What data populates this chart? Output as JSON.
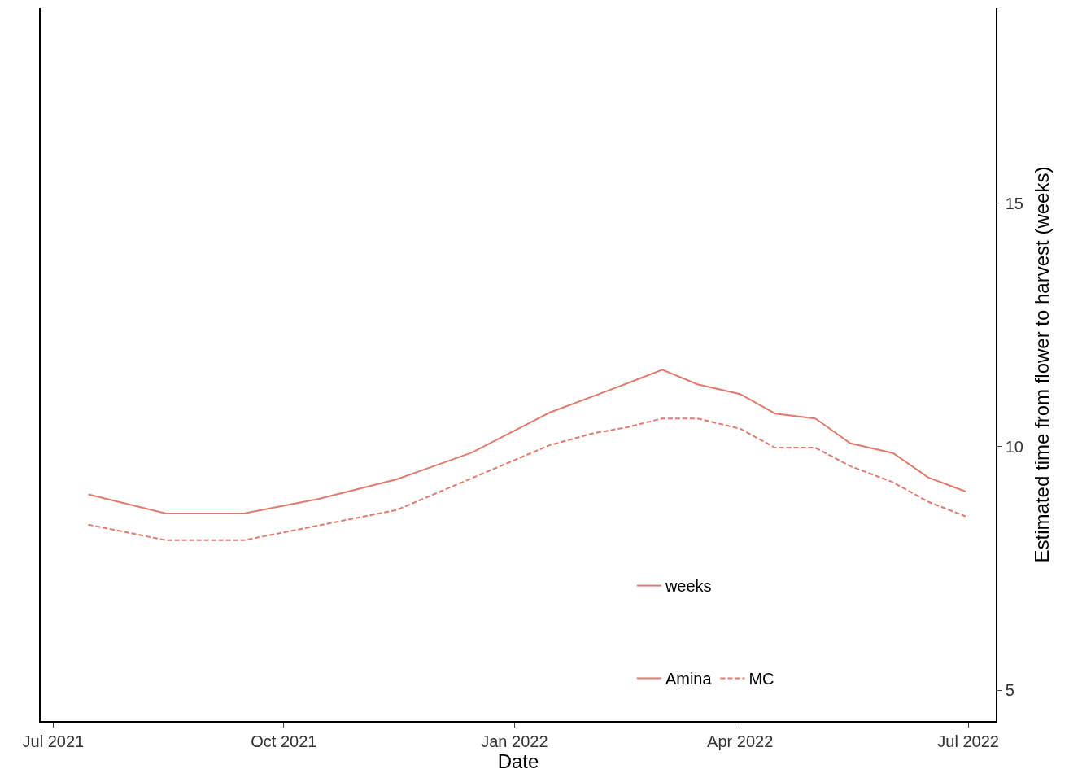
{
  "chart_data": {
    "type": "line",
    "xlabel": "Date",
    "ylabel": "Estimated time from flower to harvest (weeks)",
    "legend_title": "weeks",
    "legend": "bottom right",
    "xlim": [
      "2021-06-26",
      "2022-07-12"
    ],
    "xticks": [
      {
        "value": "2021-07-01",
        "label": "Jul 2021"
      },
      {
        "value": "2021-10-01",
        "label": "Oct 2021"
      },
      {
        "value": "2022-01-01",
        "label": "Jan 2022"
      },
      {
        "value": "2022-04-01",
        "label": "Apr 2022"
      },
      {
        "value": "2022-07-01",
        "label": "Jul 2022"
      }
    ],
    "ylim": [
      4.37,
      19
    ],
    "yticks": [
      5,
      10,
      15
    ],
    "series": [
      {
        "name": "Amina",
        "color": "#e07b6f",
        "line_style": "solid",
        "x": [
          "2021-07-15",
          "2021-08-15",
          "2021-09-15",
          "2021-10-15",
          "2021-11-15",
          "2021-12-15",
          "2022-01-15",
          "2022-02-15",
          "2022-03-01",
          "2022-03-15",
          "2022-04-01",
          "2022-04-15",
          "2022-05-01",
          "2022-05-15",
          "2022-06-01",
          "2022-06-15",
          "2022-06-30"
        ],
        "values": [
          9.02,
          8.63,
          8.63,
          8.93,
          9.33,
          9.88,
          10.7,
          11.3,
          11.58,
          11.28,
          11.08,
          10.68,
          10.58,
          10.07,
          9.87,
          9.37,
          9.08
        ]
      },
      {
        "name": "MC",
        "color": "#e07b6f",
        "line_style": "dashed",
        "x": [
          "2021-07-15",
          "2021-08-15",
          "2021-09-15",
          "2021-11-15",
          "2022-01-15",
          "2022-02-01",
          "2022-02-15",
          "2022-03-01",
          "2022-03-15",
          "2022-04-01",
          "2022-04-15",
          "2022-05-01",
          "2022-05-15",
          "2022-06-01",
          "2022-06-15",
          "2022-06-30"
        ],
        "values": [
          8.4,
          8.08,
          8.08,
          8.7,
          10.03,
          10.27,
          10.4,
          10.58,
          10.58,
          10.37,
          9.98,
          9.98,
          9.6,
          9.27,
          8.87,
          8.57
        ]
      }
    ]
  }
}
